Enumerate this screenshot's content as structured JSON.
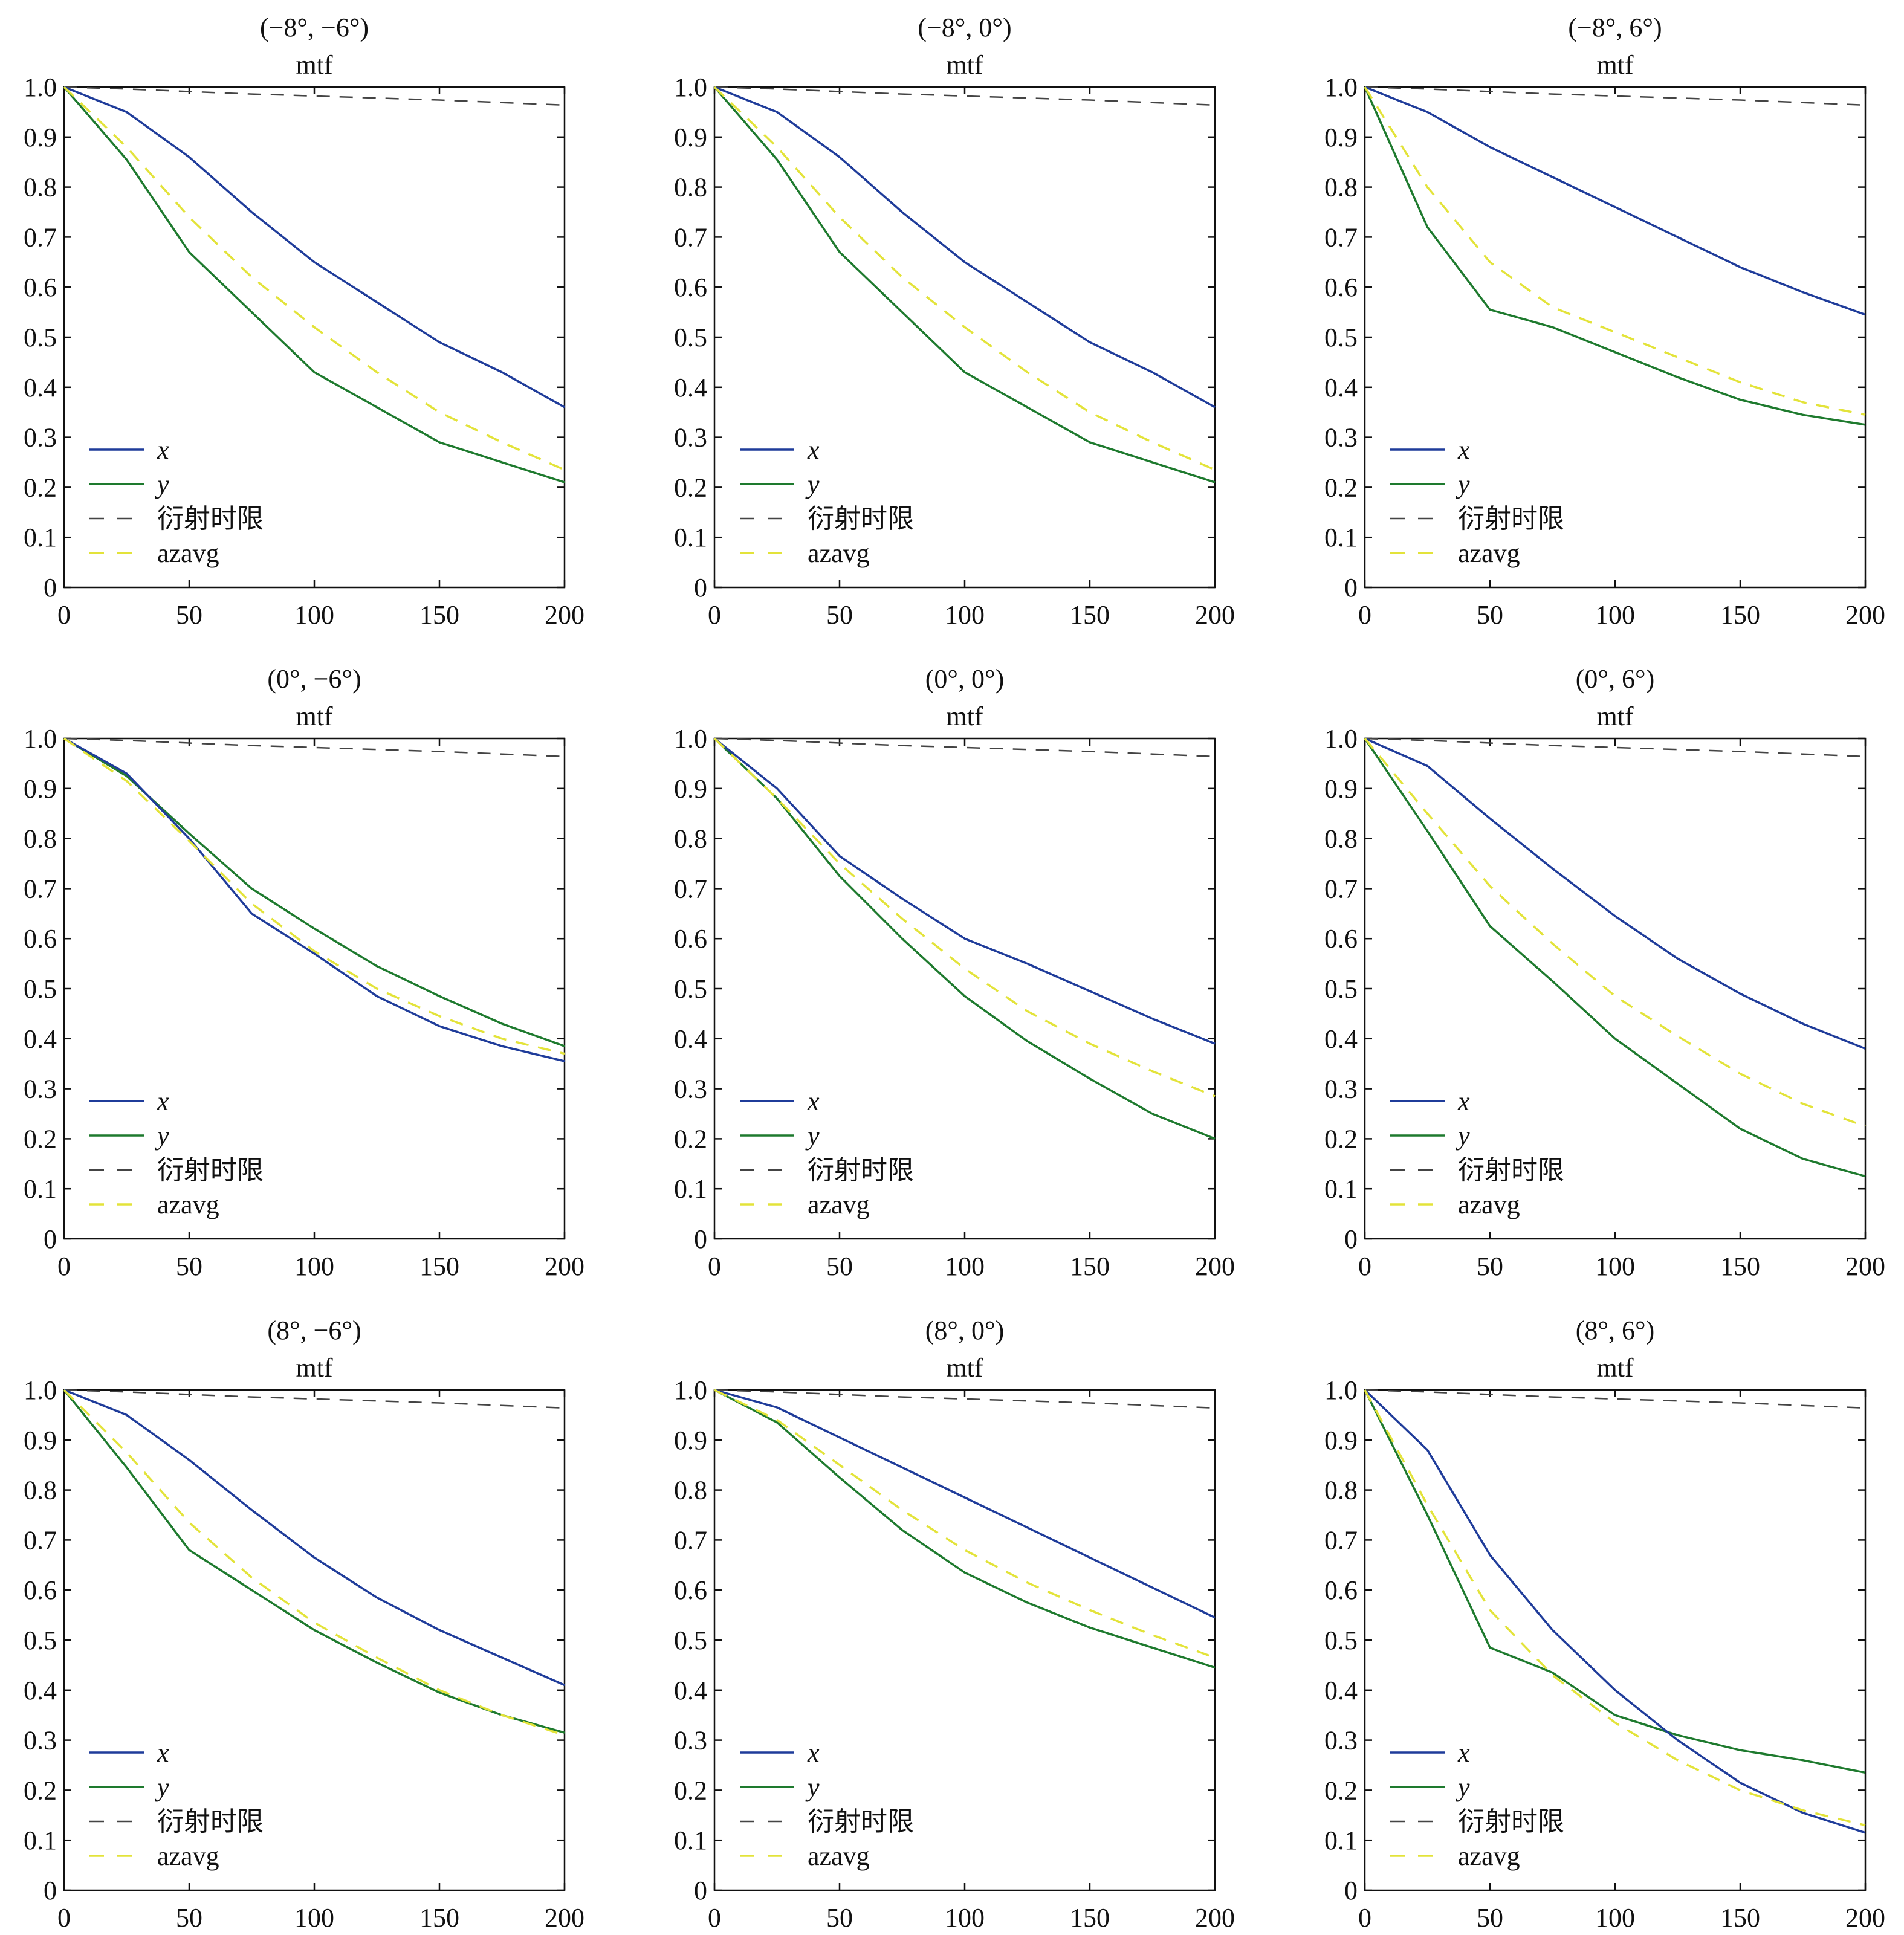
{
  "figure": {
    "subtitle": "mtf",
    "colors": {
      "x": "#1f3c9a",
      "y": "#1e7a2e",
      "diffraction": "#444444",
      "azavg": "#e3e33a"
    },
    "legend_labels": {
      "x": "x",
      "y": "y",
      "diffraction": "衍射时限",
      "azavg": "azavg"
    },
    "legend_position": "lower-left",
    "xticks": [
      "0",
      "50",
      "100",
      "150",
      "200"
    ],
    "yticks": [
      "0",
      "0.1",
      "0.2",
      "0.3",
      "0.4",
      "0.5",
      "0.6",
      "0.7",
      "0.8",
      "0.9",
      "1.0"
    ]
  },
  "chart_data": [
    {
      "type": "line",
      "title": "(−8°, −6°)",
      "subtitle": "mtf",
      "xlim": [
        0,
        200
      ],
      "ylim": [
        0,
        1.0
      ],
      "x": [
        0,
        25,
        50,
        75,
        100,
        125,
        150,
        175,
        200
      ],
      "series": [
        {
          "name": "x",
          "values": [
            1.0,
            0.95,
            0.86,
            0.75,
            0.65,
            0.57,
            0.49,
            0.43,
            0.36
          ]
        },
        {
          "name": "y",
          "values": [
            1.0,
            0.855,
            0.67,
            0.55,
            0.43,
            0.36,
            0.29,
            0.25,
            0.21
          ]
        },
        {
          "name": "衍射时限",
          "values": [
            1.0,
            0.996,
            0.991,
            0.986,
            0.982,
            0.978,
            0.974,
            0.969,
            0.964
          ]
        },
        {
          "name": "azavg",
          "values": [
            1.0,
            0.88,
            0.74,
            0.62,
            0.52,
            0.43,
            0.35,
            0.29,
            0.235
          ]
        }
      ]
    },
    {
      "type": "line",
      "title": "(−8°, 0°)",
      "subtitle": "mtf",
      "xlim": [
        0,
        200
      ],
      "ylim": [
        0,
        1.0
      ],
      "x": [
        0,
        25,
        50,
        75,
        100,
        125,
        150,
        175,
        200
      ],
      "series": [
        {
          "name": "x",
          "values": [
            1.0,
            0.95,
            0.86,
            0.75,
            0.65,
            0.57,
            0.49,
            0.43,
            0.36
          ]
        },
        {
          "name": "y",
          "values": [
            1.0,
            0.855,
            0.67,
            0.55,
            0.43,
            0.36,
            0.29,
            0.25,
            0.21
          ]
        },
        {
          "name": "衍射时限",
          "values": [
            1.0,
            0.996,
            0.991,
            0.986,
            0.982,
            0.978,
            0.974,
            0.969,
            0.964
          ]
        },
        {
          "name": "azavg",
          "values": [
            1.0,
            0.88,
            0.74,
            0.62,
            0.52,
            0.43,
            0.35,
            0.29,
            0.235
          ]
        }
      ]
    },
    {
      "type": "line",
      "title": "(−8°, 6°)",
      "subtitle": "mtf",
      "xlim": [
        0,
        200
      ],
      "ylim": [
        0,
        1.0
      ],
      "x": [
        0,
        25,
        50,
        75,
        100,
        125,
        150,
        175,
        200
      ],
      "series": [
        {
          "name": "x",
          "values": [
            1.0,
            0.95,
            0.88,
            0.82,
            0.76,
            0.7,
            0.64,
            0.59,
            0.545
          ]
        },
        {
          "name": "y",
          "values": [
            1.0,
            0.72,
            0.555,
            0.52,
            0.47,
            0.42,
            0.375,
            0.345,
            0.325
          ]
        },
        {
          "name": "衍射时限",
          "values": [
            1.0,
            0.996,
            0.991,
            0.986,
            0.982,
            0.978,
            0.974,
            0.969,
            0.964
          ]
        },
        {
          "name": "azavg",
          "values": [
            1.0,
            0.8,
            0.65,
            0.56,
            0.51,
            0.46,
            0.41,
            0.37,
            0.345
          ]
        }
      ]
    },
    {
      "type": "line",
      "title": "(0°, −6°)",
      "subtitle": "mtf",
      "xlim": [
        0,
        200
      ],
      "ylim": [
        0,
        1.0
      ],
      "x": [
        0,
        25,
        50,
        75,
        100,
        125,
        150,
        175,
        200
      ],
      "series": [
        {
          "name": "x",
          "values": [
            1.0,
            0.93,
            0.8,
            0.65,
            0.57,
            0.485,
            0.425,
            0.385,
            0.355
          ]
        },
        {
          "name": "y",
          "values": [
            1.0,
            0.925,
            0.81,
            0.7,
            0.62,
            0.545,
            0.485,
            0.43,
            0.385
          ]
        },
        {
          "name": "衍射时限",
          "values": [
            1.0,
            0.996,
            0.991,
            0.986,
            0.982,
            0.978,
            0.974,
            0.969,
            0.964
          ]
        },
        {
          "name": "azavg",
          "values": [
            1.0,
            0.915,
            0.795,
            0.67,
            0.575,
            0.5,
            0.445,
            0.4,
            0.37
          ]
        }
      ]
    },
    {
      "type": "line",
      "title": "(0°, 0°)",
      "subtitle": "mtf",
      "xlim": [
        0,
        200
      ],
      "ylim": [
        0,
        1.0
      ],
      "x": [
        0,
        25,
        50,
        75,
        100,
        125,
        150,
        175,
        200
      ],
      "series": [
        {
          "name": "x",
          "values": [
            1.0,
            0.9,
            0.765,
            0.68,
            0.6,
            0.55,
            0.495,
            0.44,
            0.39
          ]
        },
        {
          "name": "y",
          "values": [
            1.0,
            0.88,
            0.725,
            0.6,
            0.485,
            0.395,
            0.32,
            0.25,
            0.2
          ]
        },
        {
          "name": "衍射时限",
          "values": [
            1.0,
            0.996,
            0.991,
            0.986,
            0.982,
            0.978,
            0.974,
            0.969,
            0.964
          ]
        },
        {
          "name": "azavg",
          "values": [
            1.0,
            0.88,
            0.75,
            0.64,
            0.54,
            0.455,
            0.39,
            0.335,
            0.285
          ]
        }
      ]
    },
    {
      "type": "line",
      "title": "(0°, 6°)",
      "subtitle": "mtf",
      "xlim": [
        0,
        200
      ],
      "ylim": [
        0,
        1.0
      ],
      "x": [
        0,
        25,
        50,
        75,
        100,
        125,
        150,
        175,
        200
      ],
      "series": [
        {
          "name": "x",
          "values": [
            1.0,
            0.945,
            0.84,
            0.74,
            0.645,
            0.56,
            0.49,
            0.43,
            0.38
          ]
        },
        {
          "name": "y",
          "values": [
            1.0,
            0.815,
            0.625,
            0.515,
            0.4,
            0.31,
            0.22,
            0.16,
            0.125
          ]
        },
        {
          "name": "衍射时限",
          "values": [
            1.0,
            0.996,
            0.991,
            0.986,
            0.982,
            0.978,
            0.974,
            0.969,
            0.964
          ]
        },
        {
          "name": "azavg",
          "values": [
            1.0,
            0.85,
            0.705,
            0.59,
            0.485,
            0.405,
            0.33,
            0.27,
            0.225
          ]
        }
      ]
    },
    {
      "type": "line",
      "title": "(8°, −6°)",
      "subtitle": "mtf",
      "xlim": [
        0,
        200
      ],
      "ylim": [
        0,
        1.0
      ],
      "x": [
        0,
        25,
        50,
        75,
        100,
        125,
        150,
        175,
        200
      ],
      "series": [
        {
          "name": "x",
          "values": [
            1.0,
            0.95,
            0.86,
            0.76,
            0.665,
            0.585,
            0.52,
            0.465,
            0.41
          ]
        },
        {
          "name": "y",
          "values": [
            1.0,
            0.845,
            0.68,
            0.6,
            0.52,
            0.455,
            0.395,
            0.35,
            0.315
          ]
        },
        {
          "name": "衍射时限",
          "values": [
            1.0,
            0.996,
            0.991,
            0.986,
            0.982,
            0.978,
            0.974,
            0.969,
            0.964
          ]
        },
        {
          "name": "azavg",
          "values": [
            1.0,
            0.875,
            0.735,
            0.625,
            0.535,
            0.465,
            0.4,
            0.35,
            0.31
          ]
        }
      ]
    },
    {
      "type": "line",
      "title": "(8°, 0°)",
      "subtitle": "mtf",
      "xlim": [
        0,
        200
      ],
      "ylim": [
        0,
        1.0
      ],
      "x": [
        0,
        25,
        50,
        75,
        100,
        125,
        150,
        175,
        200
      ],
      "series": [
        {
          "name": "x",
          "values": [
            1.0,
            0.965,
            0.905,
            0.845,
            0.785,
            0.725,
            0.665,
            0.605,
            0.545
          ]
        },
        {
          "name": "y",
          "values": [
            1.0,
            0.935,
            0.825,
            0.72,
            0.635,
            0.575,
            0.525,
            0.485,
            0.445
          ]
        },
        {
          "name": "衍射时限",
          "values": [
            1.0,
            0.996,
            0.991,
            0.986,
            0.982,
            0.978,
            0.974,
            0.969,
            0.964
          ]
        },
        {
          "name": "azavg",
          "values": [
            1.0,
            0.94,
            0.85,
            0.76,
            0.68,
            0.615,
            0.56,
            0.51,
            0.465
          ]
        }
      ]
    },
    {
      "type": "line",
      "title": "(8°, 6°)",
      "subtitle": "mtf",
      "xlim": [
        0,
        200
      ],
      "ylim": [
        0,
        1.0
      ],
      "x": [
        0,
        25,
        50,
        75,
        100,
        125,
        150,
        175,
        200
      ],
      "series": [
        {
          "name": "x",
          "values": [
            1.0,
            0.88,
            0.67,
            0.52,
            0.4,
            0.3,
            0.215,
            0.155,
            0.115
          ]
        },
        {
          "name": "y",
          "values": [
            1.0,
            0.75,
            0.485,
            0.435,
            0.35,
            0.31,
            0.28,
            0.26,
            0.235
          ]
        },
        {
          "name": "衍射时限",
          "values": [
            1.0,
            0.996,
            0.991,
            0.986,
            0.982,
            0.978,
            0.974,
            0.969,
            0.964
          ]
        },
        {
          "name": "azavg",
          "values": [
            1.0,
            0.77,
            0.56,
            0.43,
            0.335,
            0.26,
            0.2,
            0.16,
            0.13
          ]
        }
      ]
    }
  ]
}
